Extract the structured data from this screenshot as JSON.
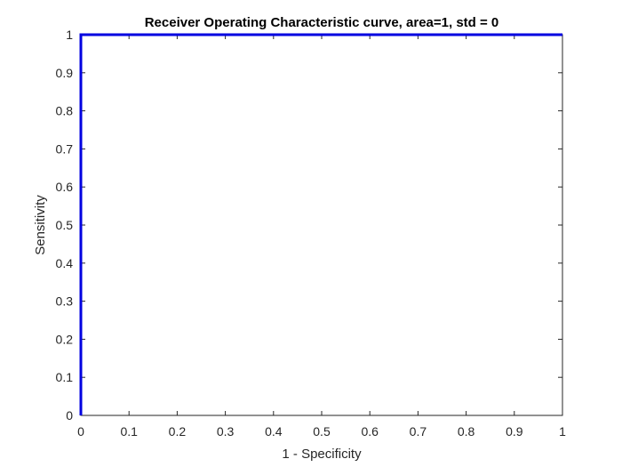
{
  "chart_data": {
    "type": "line",
    "title": "Receiver Operating Characteristic curve, area=1, std = 0",
    "xlabel": "1 - Specificity",
    "ylabel": "Sensitivity",
    "xlim": [
      0,
      1
    ],
    "ylim": [
      0,
      1
    ],
    "xticks": [
      0,
      0.1,
      0.2,
      0.3,
      0.4,
      0.5,
      0.6,
      0.7,
      0.8,
      0.9,
      1
    ],
    "yticks": [
      0,
      0.1,
      0.2,
      0.3,
      0.4,
      0.5,
      0.6,
      0.7,
      0.8,
      0.9,
      1
    ],
    "xtick_labels": [
      "0",
      "0.1",
      "0.2",
      "0.3",
      "0.4",
      "0.5",
      "0.6",
      "0.7",
      "0.8",
      "0.9",
      "1"
    ],
    "ytick_labels": [
      "0",
      "0.1",
      "0.2",
      "0.3",
      "0.4",
      "0.5",
      "0.6",
      "0.7",
      "0.8",
      "0.9",
      "1"
    ],
    "grid": false,
    "box": true,
    "series": [
      {
        "color": "#0000e0",
        "x": [
          0,
          0,
          1
        ],
        "y": [
          0,
          1,
          1
        ]
      }
    ]
  }
}
